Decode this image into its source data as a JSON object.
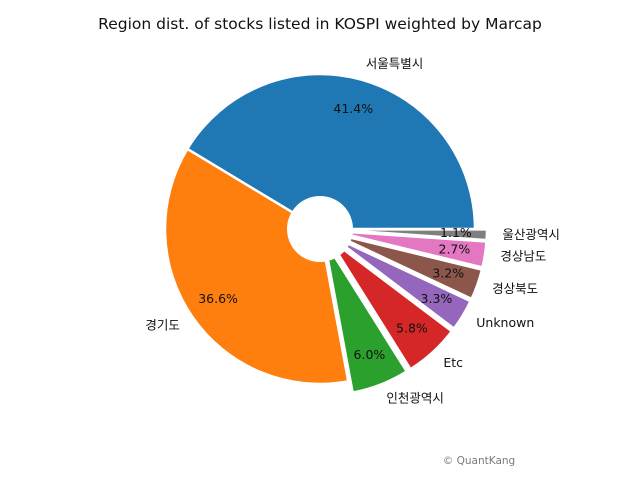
{
  "chart_data": {
    "type": "pie",
    "title": "Region dist. of stocks listed in KOSPI weighted by Marcap",
    "slices": [
      {
        "label": "서울특별시",
        "value": 41.4,
        "pct_label": "41.4%",
        "color": "#1f77b4"
      },
      {
        "label": "경기도",
        "value": 36.6,
        "pct_label": "36.6%",
        "color": "#ff7f0e"
      },
      {
        "label": "인천광역시",
        "value": 6.0,
        "pct_label": "6.0%",
        "color": "#2ca02c"
      },
      {
        "label": "Etc",
        "value": 5.8,
        "pct_label": "5.8%",
        "color": "#d62728"
      },
      {
        "label": "Unknown",
        "value": 3.3,
        "pct_label": "3.3%",
        "color": "#9467bd"
      },
      {
        "label": "경상북도",
        "value": 3.2,
        "pct_label": "3.2%",
        "color": "#8c564b"
      },
      {
        "label": "경상남도",
        "value": 2.7,
        "pct_label": "2.7%",
        "color": "#e377c2"
      },
      {
        "label": "울산광역시",
        "value": 1.1,
        "pct_label": "1.1%",
        "color": "#7f7f7f"
      }
    ],
    "start_angle_deg": 0,
    "direction": "counterclockwise",
    "donut": true,
    "exploded_slices": [
      "인천광역시",
      "Etc",
      "Unknown",
      "경상북도",
      "경상남도",
      "울산광역시"
    ]
  },
  "credit": "© QuantKang"
}
